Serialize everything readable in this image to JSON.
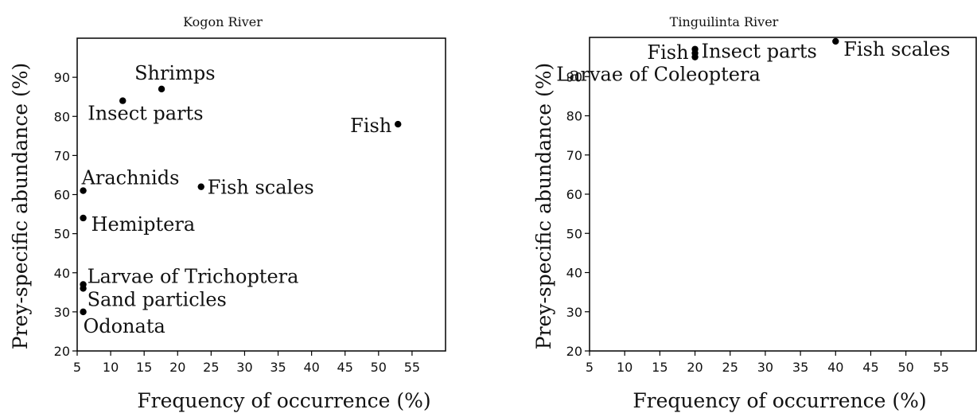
{
  "chart_data": [
    {
      "type": "scatter",
      "title": "Kogon River",
      "xlabel": "Frequency of occurrence (%)",
      "ylabel": "Prey-specific abundance (%)",
      "xlim": [
        5,
        60
      ],
      "ylim": [
        20,
        100
      ],
      "xticks": [
        5,
        10,
        15,
        20,
        25,
        30,
        35,
        40,
        45,
        50,
        55
      ],
      "yticks": [
        20,
        30,
        40,
        50,
        60,
        70,
        80,
        90
      ],
      "grid": false,
      "points": [
        {
          "label": "Shrimps",
          "x": 17.6,
          "y": 87
        },
        {
          "label": "Insect parts",
          "x": 11.8,
          "y": 84
        },
        {
          "label": "Fish",
          "x": 52.9,
          "y": 78
        },
        {
          "label": "Arachnids",
          "x": 5.9,
          "y": 61
        },
        {
          "label": "Fish scales",
          "x": 23.5,
          "y": 62
        },
        {
          "label": "Hemiptera",
          "x": 5.9,
          "y": 54
        },
        {
          "label": "Larvae of Trichoptera",
          "x": 5.9,
          "y": 37
        },
        {
          "label": "Sand particles",
          "x": 5.9,
          "y": 36
        },
        {
          "label": "Odonata",
          "x": 5.9,
          "y": 30
        }
      ]
    },
    {
      "type": "scatter",
      "title": "Tinguilinta River",
      "xlabel": "Frequency of occurrence (%)",
      "ylabel": "Prey-specific abundance (%)",
      "xlim": [
        5,
        60
      ],
      "ylim": [
        20,
        100
      ],
      "xticks": [
        5,
        10,
        15,
        20,
        25,
        30,
        35,
        40,
        45,
        50,
        55
      ],
      "yticks": [
        20,
        30,
        40,
        50,
        60,
        70,
        80,
        90
      ],
      "grid": false,
      "points": [
        {
          "label": "Fish",
          "x": 20,
          "y": 97
        },
        {
          "label": "Insect parts",
          "x": 20,
          "y": 96
        },
        {
          "label": "Larvae of Coleoptera",
          "x": 20,
          "y": 95
        },
        {
          "label": "Fish scales",
          "x": 40,
          "y": 99
        }
      ]
    }
  ]
}
